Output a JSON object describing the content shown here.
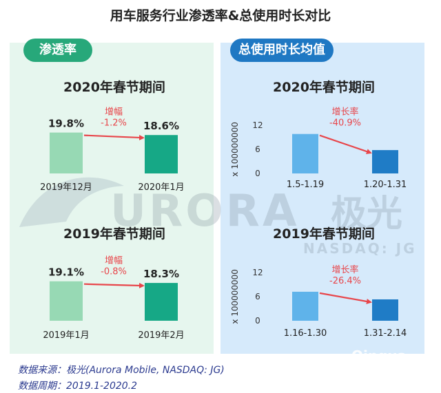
{
  "title": "用车服务行业渗透率&总使用时长对比",
  "left_header": "渗透率",
  "right_header": "总使用时长均值",
  "watermark": {
    "brand": "URORA",
    "brand_cn": "极光",
    "ticker": "NASDAQ: JG",
    "corner": "Qingua"
  },
  "chart_data": [
    {
      "type": "bar",
      "panel": "渗透率",
      "title": "2020年春节期间",
      "categories": [
        "2019年12月",
        "2020年1月"
      ],
      "values": [
        19.8,
        18.6
      ],
      "value_labels": [
        "19.8%",
        "18.6%"
      ],
      "change_label": "增幅",
      "change_value": "-1.2%",
      "colors": [
        "#97d9b4",
        "#16a886"
      ]
    },
    {
      "type": "bar",
      "panel": "渗透率",
      "title": "2019年春节期间",
      "categories": [
        "2019年1月",
        "2019年2月"
      ],
      "values": [
        19.1,
        18.3
      ],
      "value_labels": [
        "19.1%",
        "18.3%"
      ],
      "change_label": "增幅",
      "change_value": "-0.8%",
      "colors": [
        "#97d9b4",
        "#16a886"
      ]
    },
    {
      "type": "bar",
      "panel": "总使用时长均值",
      "title": "2020年春节期间",
      "ylabel": "x 100000000",
      "yticks": [
        "12",
        "6",
        "0"
      ],
      "ylim": [
        0,
        14
      ],
      "categories": [
        "1.5-1.19",
        "1.20-1.31"
      ],
      "values": [
        9.8,
        5.8
      ],
      "change_label": "增长率",
      "change_value": "-40.9%",
      "colors": [
        "#5fb3ea",
        "#1f7cc6"
      ]
    },
    {
      "type": "bar",
      "panel": "总使用时长均值",
      "title": "2019年春节期间",
      "ylabel": "x 100000000",
      "yticks": [
        "12",
        "6",
        "0"
      ],
      "ylim": [
        0,
        14
      ],
      "categories": [
        "1.16-1.30",
        "1.31-2.14"
      ],
      "values": [
        7.2,
        5.3
      ],
      "change_label": "增长率",
      "change_value": "-26.4%",
      "colors": [
        "#5fb3ea",
        "#1f7cc6"
      ]
    }
  ],
  "footer": {
    "source": "数据来源：极光(Aurora Mobile, NASDAQ: JG)",
    "period": "数据周期：2019.1-2020.2"
  },
  "colors": {
    "arrow": "#e8454a",
    "change_text": "#e8454a",
    "text": "#222222"
  }
}
